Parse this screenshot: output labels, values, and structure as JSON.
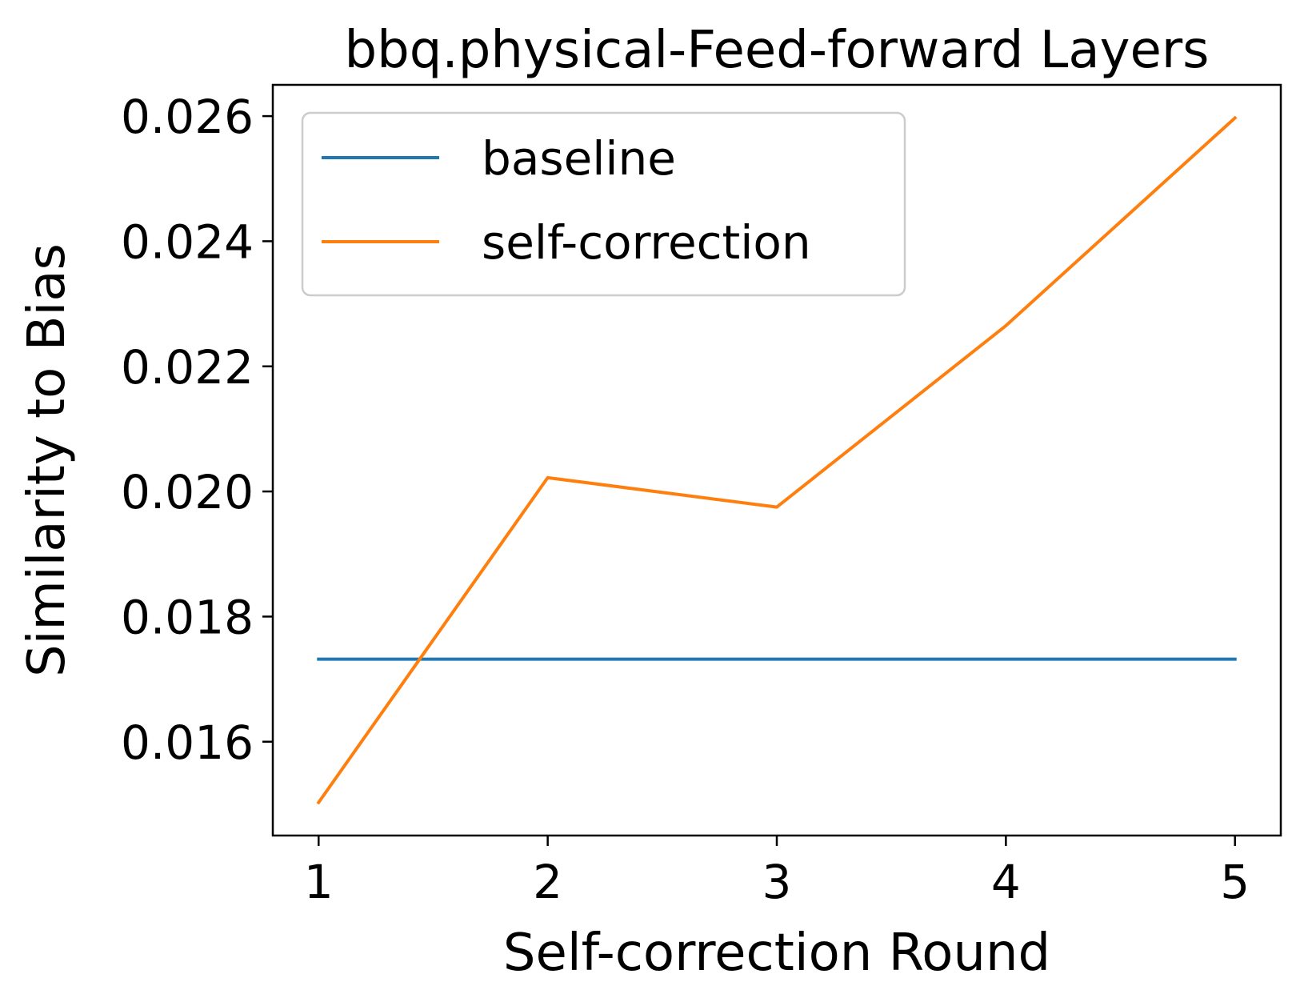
{
  "chart_data": {
    "type": "line",
    "title": "bbq.physical-Feed-forward Layers",
    "xlabel": "Self-correction Round",
    "ylabel": "Similarity to Bias",
    "x": [
      1,
      2,
      3,
      4,
      5
    ],
    "xticks": [
      "1",
      "2",
      "3",
      "4",
      "5"
    ],
    "yticks": [
      "0.016",
      "0.018",
      "0.020",
      "0.022",
      "0.024",
      "0.026"
    ],
    "xlim": [
      0.8,
      5.2
    ],
    "ylim": [
      0.0145,
      0.0265
    ],
    "grid": false,
    "legend_position": "upper-left",
    "series": [
      {
        "name": "baseline",
        "color": "#1f77b4",
        "values": [
          0.01732,
          0.01732,
          0.01732,
          0.01732,
          0.01732
        ]
      },
      {
        "name": "self-correction",
        "color": "#ff7f0e",
        "values": [
          0.01503,
          0.02022,
          0.01975,
          0.02265,
          0.02597
        ]
      }
    ]
  }
}
